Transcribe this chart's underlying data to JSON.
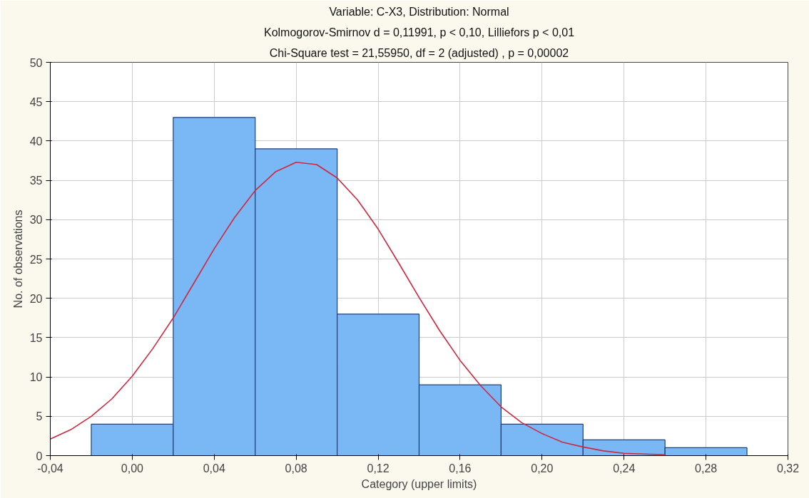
{
  "chart_data": {
    "type": "histogram",
    "title": "Variable: C-X3, Distribution: Normal",
    "subtitle": "Kolmogorov-Smirnov d = 0,11991, p < 0,10, Lilliefors p < 0,01",
    "annotations": [
      "Chi-Square test = 21,55950, df = 2 (adjusted) , p = 0,00002"
    ],
    "xlabel": "Category (upper limits)",
    "ylabel": "No. of observations",
    "bins": [
      -0.02,
      0.02,
      0.06,
      0.1,
      0.14,
      0.18,
      0.22,
      0.26,
      0.3
    ],
    "values": [
      4,
      43,
      39,
      18,
      9,
      4,
      2,
      1
    ],
    "color": "#7ab8f5",
    "series": [
      {
        "type": "line",
        "color": "#d0273e",
        "x": [
          -0.04,
          -0.03,
          -0.02,
          -0.01,
          0.0,
          0.01,
          0.02,
          0.03,
          0.04,
          0.05,
          0.06,
          0.07,
          0.08,
          0.09,
          0.1,
          0.11,
          0.12,
          0.13,
          0.14,
          0.15,
          0.16,
          0.17,
          0.18,
          0.19,
          0.2,
          0.21,
          0.22,
          0.23,
          0.24,
          0.25,
          0.26
        ],
        "values": [
          2.1,
          3.3,
          5.0,
          7.2,
          10.1,
          13.6,
          17.5,
          21.9,
          26.3,
          30.3,
          33.7,
          36.1,
          37.3,
          37.0,
          35.3,
          32.5,
          28.8,
          24.5,
          20.1,
          15.9,
          12.1,
          8.9,
          6.2,
          4.2,
          2.8,
          1.7,
          1.1,
          0.6,
          0.3,
          0.2,
          0.1
        ]
      }
    ],
    "xlim": [
      -0.04,
      0.32
    ],
    "ylim": [
      0,
      50
    ],
    "xticks": [
      {
        "value": -0.04,
        "label": "-0,04"
      },
      {
        "value": 0.0,
        "label": "0,00"
      },
      {
        "value": 0.04,
        "label": "0,04"
      },
      {
        "value": 0.08,
        "label": "0,08"
      },
      {
        "value": 0.12,
        "label": "0,12"
      },
      {
        "value": 0.16,
        "label": "0,16"
      },
      {
        "value": 0.2,
        "label": "0,20"
      },
      {
        "value": 0.24,
        "label": "0,24"
      },
      {
        "value": 0.28,
        "label": "0,28"
      },
      {
        "value": 0.32,
        "label": "0,32"
      }
    ],
    "yticks": [
      0,
      5,
      10,
      15,
      20,
      25,
      30,
      35,
      40,
      45,
      50
    ],
    "grid": true
  }
}
